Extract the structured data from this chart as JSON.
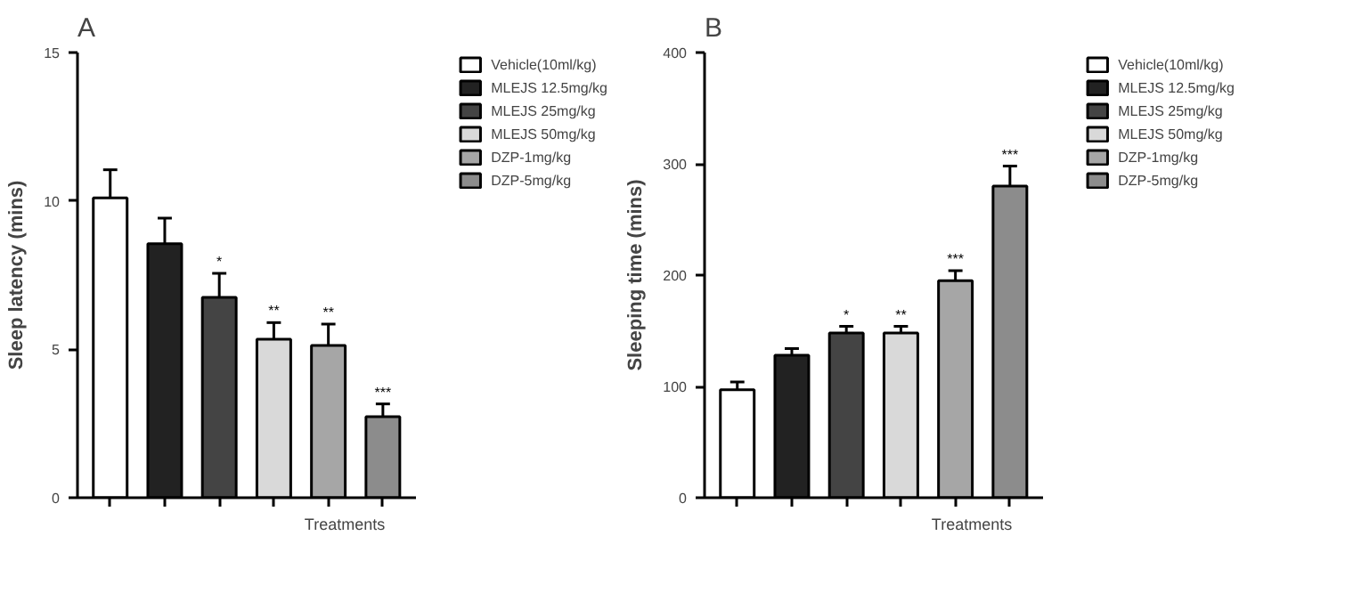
{
  "chart_data": [
    {
      "type": "bar",
      "title": "A",
      "xlabel": "Treatments",
      "ylabel": "Sleep latency (mins)",
      "categories": [
        null,
        null,
        null,
        null,
        null,
        null
      ],
      "ylim": [
        0,
        15
      ],
      "yticks": [
        0,
        5,
        10,
        15
      ],
      "grid": false,
      "legend": "right",
      "tick_labels": "y",
      "series": [
        {
          "name": "Vehicle(10ml/kg)",
          "color": "#ffffff",
          "values": [
            10.1,
            null,
            null,
            null,
            null,
            null
          ],
          "errors": [
            [
              10.1,
              11.05
            ],
            null,
            null,
            null,
            null,
            null
          ]
        },
        {
          "name": "MLEJS 12.5mg/kg",
          "color": "#222222",
          "values": [
            null,
            8.56,
            null,
            null,
            null,
            null
          ],
          "errors": [
            null,
            [
              8.56,
              9.42
            ],
            null,
            null,
            null,
            null
          ]
        },
        {
          "name": "MLEJS 25mg/kg",
          "color": "#444444",
          "values": [
            null,
            null,
            6.75,
            null,
            null,
            null
          ],
          "errors": [
            null,
            null,
            [
              6.75,
              7.56
            ],
            null,
            null,
            null
          ],
          "value_labels": [
            null,
            null,
            "*",
            null,
            null,
            null
          ]
        },
        {
          "name": "MLEJS 50mg/kg",
          "color": "#d9d9d9",
          "values": [
            null,
            null,
            null,
            5.34,
            null,
            null
          ],
          "errors": [
            null,
            null,
            null,
            [
              5.34,
              5.9
            ],
            null,
            null
          ],
          "value_labels": [
            null,
            null,
            null,
            "**",
            null,
            null
          ]
        },
        {
          "name": "DZP-1mg/kg",
          "color": "#a6a6a6",
          "values": [
            null,
            null,
            null,
            null,
            5.13,
            null
          ],
          "errors": [
            null,
            null,
            null,
            null,
            [
              5.13,
              5.85
            ],
            null
          ],
          "value_labels": [
            null,
            null,
            null,
            null,
            "**",
            null
          ]
        },
        {
          "name": "DZP-5mg/kg",
          "color": "#8c8c8c",
          "values": [
            null,
            null,
            null,
            null,
            null,
            2.73
          ],
          "errors": [
            null,
            null,
            null,
            null,
            null,
            [
              2.73,
              3.16
            ]
          ],
          "value_labels": [
            null,
            null,
            null,
            null,
            null,
            "***"
          ]
        }
      ]
    },
    {
      "type": "bar",
      "title": "B",
      "xlabel": "Treatments",
      "ylabel": "Sleeping time (mins)",
      "categories": [
        null,
        null,
        null,
        null,
        null,
        null
      ],
      "ylim": [
        0,
        400
      ],
      "yticks": [
        0,
        100,
        200,
        300,
        400
      ],
      "grid": false,
      "legend": "right",
      "tick_labels": "y",
      "series": [
        {
          "name": "Vehicle(10ml/kg)",
          "color": "#ffffff",
          "values": [
            97,
            null,
            null,
            null,
            null,
            null
          ],
          "errors": [
            [
              97,
              104
            ],
            null,
            null,
            null,
            null,
            null
          ]
        },
        {
          "name": "MLEJS 12.5mg/kg",
          "color": "#222222",
          "values": [
            null,
            128,
            null,
            null,
            null,
            null
          ],
          "errors": [
            null,
            [
              128,
              134
            ],
            null,
            null,
            null,
            null
          ]
        },
        {
          "name": "MLEJS 25mg/kg",
          "color": "#444444",
          "values": [
            null,
            null,
            148,
            null,
            null,
            null
          ],
          "errors": [
            null,
            null,
            [
              148,
              154
            ],
            null,
            null,
            null
          ],
          "value_labels": [
            null,
            null,
            "*",
            null,
            null,
            null
          ]
        },
        {
          "name": "MLEJS 50mg/kg",
          "color": "#d9d9d9",
          "values": [
            null,
            null,
            null,
            148,
            null,
            null
          ],
          "errors": [
            null,
            null,
            null,
            [
              148,
              154
            ],
            null,
            null
          ],
          "value_labels": [
            null,
            null,
            null,
            "**",
            null,
            null
          ]
        },
        {
          "name": "DZP-1mg/kg",
          "color": "#a6a6a6",
          "values": [
            null,
            null,
            null,
            null,
            195,
            null
          ],
          "errors": [
            null,
            null,
            null,
            null,
            [
              195,
              204
            ],
            null
          ],
          "value_labels": [
            null,
            null,
            null,
            null,
            "***",
            null
          ]
        },
        {
          "name": "DZP-5mg/kg",
          "color": "#8c8c8c",
          "values": [
            null,
            null,
            null,
            null,
            null,
            280
          ],
          "errors": [
            null,
            null,
            null,
            null,
            null,
            [
              280,
              298
            ]
          ],
          "value_labels": [
            null,
            null,
            null,
            null,
            null,
            "***"
          ]
        }
      ]
    }
  ]
}
